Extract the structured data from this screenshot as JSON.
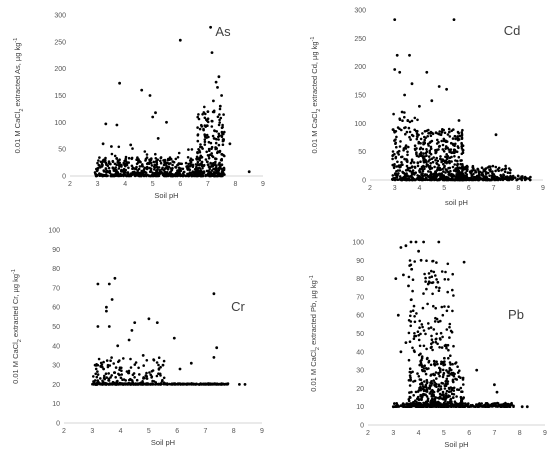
{
  "chart_data": [
    {
      "type": "scatter",
      "title": "As",
      "xlabel": "Soil pH",
      "ylabel_prefix": "0.01 M CaCl",
      "ylabel_sub": "2",
      "ylabel_mid": " extracted As, µg kg",
      "ylabel_sup": "-1",
      "xlim": [
        2,
        9
      ],
      "ylim": [
        0,
        300
      ],
      "xticks": [
        "2",
        "3",
        "4",
        "5",
        "6",
        "7",
        "8",
        "9"
      ],
      "yticks": [
        "0",
        "50",
        "100",
        "150",
        "200",
        "250",
        "300"
      ],
      "outliers": [
        [
          6.0,
          253
        ],
        [
          7.1,
          277
        ],
        [
          7.15,
          230
        ],
        [
          3.8,
          173
        ],
        [
          4.9,
          150
        ],
        [
          4.6,
          160
        ],
        [
          5.1,
          118
        ],
        [
          5.0,
          110
        ],
        [
          3.3,
          97
        ],
        [
          3.7,
          95
        ],
        [
          5.5,
          100
        ],
        [
          3.2,
          60
        ],
        [
          3.5,
          55
        ],
        [
          4.2,
          58
        ],
        [
          5.2,
          70
        ],
        [
          8.5,
          8
        ],
        [
          7.3,
          175
        ],
        [
          7.4,
          185
        ],
        [
          7.35,
          165
        ],
        [
          7.5,
          150
        ],
        [
          7.2,
          140
        ],
        [
          7.0,
          120
        ],
        [
          7.45,
          130
        ],
        [
          7.8,
          60
        ]
      ],
      "dense": [
        {
          "x0": 2.9,
          "x1": 6.7,
          "ymax": 35,
          "n": 480
        },
        {
          "x0": 6.6,
          "x1": 7.6,
          "ymax": 130,
          "n": 260
        },
        {
          "x0": 3.0,
          "x1": 7.6,
          "ymax": 55,
          "n": 80
        }
      ]
    },
    {
      "type": "scatter",
      "title": "Cd",
      "xlabel": "soil pH",
      "ylabel_prefix": "0.01 M CaCl",
      "ylabel_sub": "2",
      "ylabel_mid": " extracted Cd, µg kg",
      "ylabel_sup": "-1",
      "xlim": [
        2,
        9
      ],
      "ylim": [
        0,
        300
      ],
      "xticks": [
        "2",
        "3",
        "4",
        "5",
        "6",
        "7",
        "8",
        "9"
      ],
      "yticks": [
        "0",
        "50",
        "100",
        "150",
        "200",
        "250",
        "300"
      ],
      "outliers": [
        [
          3.0,
          283
        ],
        [
          5.4,
          283
        ],
        [
          3.1,
          220
        ],
        [
          3.6,
          220
        ],
        [
          3.0,
          195
        ],
        [
          3.2,
          190
        ],
        [
          4.3,
          190
        ],
        [
          3.7,
          170
        ],
        [
          4.8,
          165
        ],
        [
          5.1,
          160
        ],
        [
          3.4,
          150
        ],
        [
          4.0,
          130
        ],
        [
          5.6,
          105
        ],
        [
          7.1,
          80
        ],
        [
          3.3,
          120
        ],
        [
          4.5,
          140
        ]
      ],
      "dense": [
        {
          "x0": 2.9,
          "x1": 4.0,
          "ymax": 120,
          "n": 180
        },
        {
          "x0": 4.0,
          "x1": 5.8,
          "ymax": 90,
          "n": 420
        },
        {
          "x0": 5.5,
          "x1": 7.8,
          "ymax": 25,
          "n": 200
        },
        {
          "x0": 3.0,
          "x1": 8.5,
          "ymax": 8,
          "n": 150
        }
      ]
    },
    {
      "type": "scatter",
      "title": "Cr",
      "xlabel": "Soil pH",
      "ylabel_prefix": "0.01 M CaCl",
      "ylabel_sub": "2",
      "ylabel_mid": " extracted Cr, µg kg",
      "ylabel_sup": "-1",
      "xlim": [
        2,
        9
      ],
      "ylim": [
        0,
        100
      ],
      "xticks": [
        "2",
        "3",
        "4",
        "5",
        "6",
        "7",
        "8",
        "9"
      ],
      "yticks": [
        "0",
        "10",
        "20",
        "30",
        "40",
        "50",
        "60",
        "70",
        "80",
        "90",
        "100"
      ],
      "outliers": [
        [
          3.2,
          72
        ],
        [
          3.6,
          72
        ],
        [
          3.8,
          75
        ],
        [
          3.7,
          64
        ],
        [
          3.5,
          60
        ],
        [
          3.5,
          58
        ],
        [
          3.2,
          50
        ],
        [
          3.6,
          50
        ],
        [
          4.4,
          48
        ],
        [
          4.5,
          52
        ],
        [
          5.0,
          54
        ],
        [
          5.3,
          52
        ],
        [
          5.9,
          44
        ],
        [
          7.3,
          67
        ],
        [
          7.4,
          39
        ],
        [
          3.9,
          40
        ],
        [
          4.3,
          43
        ],
        [
          6.5,
          31
        ],
        [
          8.2,
          20
        ],
        [
          8.4,
          20
        ],
        [
          3.1,
          30
        ],
        [
          3.4,
          28
        ],
        [
          4.8,
          35
        ],
        [
          5.5,
          30
        ],
        [
          6.1,
          28
        ],
        [
          7.3,
          34
        ]
      ],
      "dense": [
        {
          "x0": 3.0,
          "x1": 5.6,
          "ymax": 34,
          "ymin": 20,
          "n": 170
        },
        {
          "x0": 3.0,
          "x1": 7.8,
          "ymax": 20.5,
          "ymin": 20,
          "n": 320
        }
      ]
    },
    {
      "type": "scatter",
      "title": "Pb",
      "xlabel": "Soil pH",
      "ylabel_prefix": "0.01 M CaCl",
      "ylabel_sub": "2",
      "ylabel_mid": " extracted Pb, µg kg",
      "ylabel_sup": "-1",
      "xlim": [
        2,
        9
      ],
      "ylim": [
        0,
        100
      ],
      "xticks": [
        "2",
        "3",
        "4",
        "5",
        "6",
        "7",
        "8",
        "9"
      ],
      "yticks": [
        "0",
        "10",
        "20",
        "30",
        "40",
        "50",
        "60",
        "70",
        "80",
        "90",
        "100"
      ],
      "outliers": [
        [
          3.7,
          100
        ],
        [
          3.9,
          100
        ],
        [
          4.2,
          100
        ],
        [
          4.8,
          100
        ],
        [
          3.3,
          97
        ],
        [
          3.5,
          98
        ],
        [
          3.1,
          80
        ],
        [
          3.4,
          82
        ],
        [
          3.6,
          76
        ],
        [
          3.2,
          60
        ],
        [
          5.8,
          89
        ],
        [
          4.0,
          95
        ],
        [
          4.1,
          90
        ],
        [
          3.0,
          10
        ],
        [
          3.3,
          40
        ],
        [
          3.5,
          45
        ],
        [
          6.3,
          30
        ],
        [
          7.0,
          22
        ],
        [
          7.1,
          18
        ],
        [
          8.1,
          10
        ],
        [
          8.3,
          10
        ]
      ],
      "dense": [
        {
          "x0": 3.6,
          "x1": 5.4,
          "ymax": 90,
          "ymin": 10,
          "n": 330
        },
        {
          "x0": 4.0,
          "x1": 5.8,
          "ymax": 35,
          "ymin": 10,
          "n": 260
        },
        {
          "x0": 3.0,
          "x1": 7.8,
          "ymax": 12,
          "ymin": 10,
          "n": 260
        }
      ]
    }
  ]
}
